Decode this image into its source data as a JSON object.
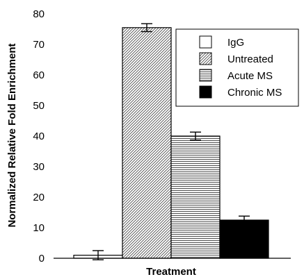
{
  "chart_data": {
    "type": "bar",
    "title": "",
    "xlabel": "Treatment",
    "ylabel": "Normalized Relative Fold Enrichment",
    "ylim": [
      0,
      80
    ],
    "yticks": [
      0,
      10,
      20,
      30,
      40,
      50,
      60,
      70,
      80
    ],
    "grid": false,
    "legend_position": "top-right",
    "categories": [
      "IgG",
      "Untreated",
      "Acute MS",
      "Chronic MS"
    ],
    "values": [
      1,
      75.5,
      40,
      12.5
    ],
    "errors": [
      1.5,
      1.3,
      1.3,
      1.3
    ],
    "legend": [
      {
        "label": "IgG",
        "pattern": "white"
      },
      {
        "label": "Untreated",
        "pattern": "diagonal"
      },
      {
        "label": "Acute MS",
        "pattern": "horizontal"
      },
      {
        "label": "Chronic MS",
        "pattern": "black"
      }
    ],
    "colors": {
      "fill_solid": "#000000",
      "stroke": "#000000",
      "background": "#ffffff"
    }
  }
}
